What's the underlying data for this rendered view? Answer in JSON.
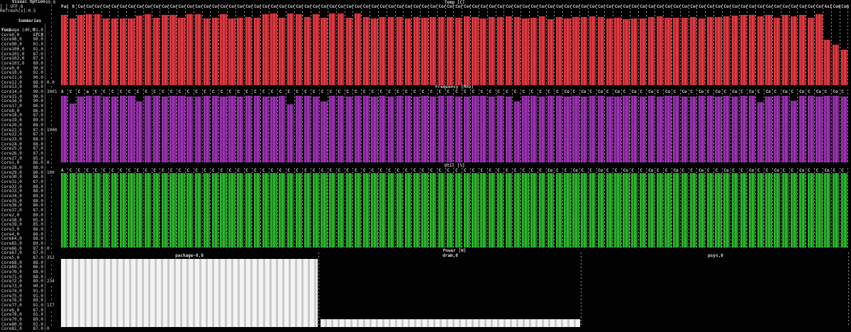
{
  "sidebar": {
    "section_title": "Visual Options",
    "utf8_option": "[ ] UTF-8",
    "refresh_label": "Refresh[s]:0.5",
    "summaries_title": "Summaries",
    "temp_header": {
      "label": "Temp",
      "unit": "[C]"
    },
    "sensors": [
      {
        "name": "Package id0,0",
        "value": "91.0",
        "axis": ""
      },
      {
        "name": "Core0,0",
        "value": "87.0",
        "axis": ""
      },
      {
        "name": "Core98,0",
        "value": "90.0",
        "axis": ""
      },
      {
        "name": "Core99,0",
        "value": "91.0",
        "axis": ""
      },
      {
        "name": "Core100,0",
        "value": "91.0",
        "axis": ""
      },
      {
        "name": "Core101,0",
        "value": "87.0",
        "axis": ""
      },
      {
        "name": "Core102,0",
        "value": "87.0",
        "axis": ""
      },
      {
        "name": "Core103,0",
        "value": "89.0",
        "axis": ""
      },
      {
        "name": "Core9,0",
        "value": "90.0",
        "axis": ""
      },
      {
        "name": "Core10,0",
        "value": "92.0",
        "axis": ""
      },
      {
        "name": "Core11,0",
        "value": "90.0",
        "axis": ""
      },
      {
        "name": "Core12,0",
        "value": "88.0",
        "axis": "0.0"
      },
      {
        "name": "Core13,0",
        "value": "90.0",
        "axis": ""
      },
      {
        "name": "Core14,0",
        "value": "90.0",
        "axis": "3001"
      },
      {
        "name": "Core15,0",
        "value": "90.0",
        "axis": ""
      },
      {
        "name": "Core16,0",
        "value": "90.0",
        "axis": ""
      },
      {
        "name": "Core17,0",
        "value": "86.0",
        "axis": ""
      },
      {
        "name": "Core8,0",
        "value": "86.0",
        "axis": ""
      },
      {
        "name": "Core18,0",
        "value": "87.0",
        "axis": ""
      },
      {
        "name": "Core19,0",
        "value": "89.0",
        "axis": ""
      },
      {
        "name": "Core20,0",
        "value": "88.0",
        "axis": ""
      },
      {
        "name": "Core21,0",
        "value": "87.0",
        "axis": "1900"
      },
      {
        "name": "Core22,0",
        "value": "87.0",
        "axis": ""
      },
      {
        "name": "Core23,0",
        "value": "88.0",
        "axis": ""
      },
      {
        "name": "Core24,0",
        "value": "88.0",
        "axis": ""
      },
      {
        "name": "Core25,0",
        "value": "87.0",
        "axis": ""
      },
      {
        "name": "Core26,0",
        "value": "87.0",
        "axis": ""
      },
      {
        "name": "Core27,0",
        "value": "85.0",
        "axis": ""
      },
      {
        "name": "Core1,0",
        "value": "86.0",
        "axis": "0"
      },
      {
        "name": "Core28,0",
        "value": "88.0",
        "axis": ""
      },
      {
        "name": "Core29,0",
        "value": "86.0",
        "axis": "100"
      },
      {
        "name": "Core30,0",
        "value": "88.0",
        "axis": ""
      },
      {
        "name": "Core31,0",
        "value": "87.0",
        "axis": ""
      },
      {
        "name": "Core32,0",
        "value": "88.0",
        "axis": ""
      },
      {
        "name": "Core33,0",
        "value": "88.0",
        "axis": ""
      },
      {
        "name": "Core34,0",
        "value": "89.0",
        "axis": ""
      },
      {
        "name": "Core35,0",
        "value": "88.0",
        "axis": ""
      },
      {
        "name": "Core36,0",
        "value": "86.0",
        "axis": ""
      },
      {
        "name": "Core37,0",
        "value": "87.0",
        "axis": ""
      },
      {
        "name": "Core2,0",
        "value": "89.0",
        "axis": ""
      },
      {
        "name": "Core38,0",
        "value": "85.0",
        "axis": ""
      },
      {
        "name": "Core39,0",
        "value": "85.0",
        "axis": ""
      },
      {
        "name": "Core3,0",
        "value": "86.0",
        "axis": ""
      },
      {
        "name": "Core4,0",
        "value": "86.0",
        "axis": ""
      },
      {
        "name": "Core64,0",
        "value": "88.0",
        "axis": ""
      },
      {
        "name": "Core65,0",
        "value": "89.0",
        "axis": ""
      },
      {
        "name": "Core66,0",
        "value": "87.0",
        "axis": "0"
      },
      {
        "name": "Core67,0",
        "value": "87.0",
        "axis": ""
      },
      {
        "name": "Core5,0",
        "value": "87.0",
        "axis": "352"
      },
      {
        "name": "Core68,0",
        "value": "88.0",
        "axis": ""
      },
      {
        "name": "Core69,0",
        "value": "86.0",
        "axis": ""
      },
      {
        "name": "Core70,0",
        "value": "88.0",
        "axis": ""
      },
      {
        "name": "Core71,0",
        "value": "88.0",
        "axis": ""
      },
      {
        "name": "Core72,0",
        "value": "89.0",
        "axis": "234"
      },
      {
        "name": "Core73,0",
        "value": "90.0",
        "axis": ""
      },
      {
        "name": "Core74,0",
        "value": "91.0",
        "axis": ""
      },
      {
        "name": "Core75,0",
        "value": "91.0",
        "axis": ""
      },
      {
        "name": "Core76,0",
        "value": "89.0",
        "axis": ""
      },
      {
        "name": "Core77,0",
        "value": "91.0",
        "axis": "117"
      },
      {
        "name": "Core6,0",
        "value": "87.0",
        "axis": ""
      },
      {
        "name": "Core78,0",
        "value": "91.0",
        "axis": ""
      },
      {
        "name": "Core79,0",
        "value": "89.0",
        "axis": ""
      },
      {
        "name": "Core80,0",
        "value": "91.0",
        "axis": ""
      },
      {
        "name": "Core81,0",
        "value": "87.0",
        "axis": "0"
      }
    ]
  },
  "chart_data": [
    {
      "type": "bar",
      "title": "Temp [C]",
      "ylabel": "Temperature C",
      "ylim": [
        0,
        99
      ],
      "axis_ticks": [
        "99.0",
        "0.0"
      ],
      "color": "#e13a42",
      "column_headers": {
        "count": 94,
        "default": "Cor",
        "overrides": {
          "0": "Pac",
          "1": " 0 ",
          "73": "Core",
          "75": "Core",
          "77": "Core",
          "79": "Core",
          "81": "Core",
          "83": "Core",
          "85": "Core",
          "87": "Core",
          "89": "Core",
          "91": "Asi",
          "92": "Comp",
          "93": "Com"
        }
      },
      "values": [
        91,
        86,
        91,
        92,
        92,
        86,
        86,
        86,
        86,
        90,
        92,
        87,
        91,
        91,
        87,
        92,
        92,
        86,
        87,
        92,
        86,
        87,
        88,
        87,
        92,
        93,
        87,
        93,
        92,
        88,
        92,
        87,
        93,
        93,
        87,
        93,
        88,
        86,
        88,
        88,
        88,
        86,
        88,
        87,
        88,
        88,
        88,
        87,
        89,
        88,
        86,
        88,
        88,
        89,
        88,
        86,
        87,
        89,
        85,
        88,
        86,
        88,
        88,
        89,
        88,
        86,
        87,
        85,
        86,
        86,
        88,
        89,
        87,
        87,
        87,
        88,
        86,
        88,
        88,
        89,
        90,
        91,
        91,
        89,
        91,
        87,
        91,
        89,
        91,
        87,
        92,
        59,
        52,
        46
      ]
    },
    {
      "type": "bar",
      "title": "Frequency [MHz]",
      "ylabel": "Frequency MHz",
      "ylim": [
        0,
        3001
      ],
      "axis_ticks": [
        "3001",
        "1900",
        "0"
      ],
      "color": "#9d32b2",
      "column_headers": {
        "count": 94,
        "default": "C",
        "overrides": {
          "0": "A",
          "3": "a",
          "60": "Co",
          "62": "Co",
          "64": "Co",
          "66": "Co",
          "68": "Co",
          "70": "Co",
          "72": "Co",
          "74": "Co",
          "76": "Co",
          "78": "Co",
          "80": "Co",
          "82": "Co",
          "84": "Co",
          "86": "Co",
          "88": "Co",
          "90": "Co",
          "92": "Co"
        }
      },
      "values": [
        2930,
        2600,
        2920,
        2930,
        2925,
        2920,
        2915,
        2925,
        2930,
        2680,
        2925,
        2930,
        2920,
        2925,
        2930,
        2920,
        2915,
        2930,
        2925,
        2920,
        2930,
        2915,
        2925,
        2930,
        2920,
        2915,
        2925,
        2560,
        2925,
        2930,
        2920,
        2700,
        2930,
        2925,
        2915,
        2930,
        2925,
        2920,
        2930,
        2915,
        2930,
        2925,
        2920,
        2930,
        2915,
        2925,
        2930,
        2920,
        2915,
        2930,
        2925,
        2920,
        2930,
        2915,
        2680,
        2930,
        2925,
        2915,
        2930,
        2925,
        2920,
        2930,
        2915,
        2925,
        2930,
        2920,
        2915,
        2930,
        2925,
        2920,
        2930,
        2915,
        2925,
        2930,
        2920,
        2915,
        2930,
        2925,
        2920,
        2930,
        2915,
        2925,
        2930,
        2650,
        2915,
        2925,
        2930,
        2720,
        2925,
        2930,
        2915,
        2925,
        2930,
        2920
      ]
    },
    {
      "type": "bar",
      "title": "Util [%]",
      "ylabel": "Utilization %",
      "ylim": [
        0,
        100
      ],
      "axis_ticks": [
        "100",
        "0"
      ],
      "color": "#2cb42c",
      "column_headers": {
        "count": 94,
        "default": "C",
        "overrides": {
          "0": "A",
          "58": "Co",
          "61": "Co",
          "64": "Co",
          "67": "Co",
          "70": "Co",
          "73": "Co",
          "76": "Co",
          "79": "Co",
          "82": "Co",
          "85": "Co",
          "88": "Co",
          "91": "Co"
        }
      },
      "values": [
        100,
        100,
        100,
        100,
        100,
        100,
        100,
        100,
        100,
        100,
        100,
        100,
        100,
        100,
        100,
        100,
        100,
        100,
        100,
        100,
        100,
        100,
        100,
        100,
        100,
        100,
        100,
        100,
        100,
        100,
        100,
        100,
        100,
        100,
        100,
        100,
        100,
        100,
        100,
        100,
        100,
        100,
        100,
        100,
        100,
        100,
        100,
        100,
        100,
        100,
        100,
        100,
        100,
        100,
        100,
        100,
        100,
        100,
        100,
        100,
        100,
        100,
        100,
        100,
        100,
        100,
        100,
        100,
        100,
        100,
        100,
        100,
        100,
        100,
        100,
        100,
        100,
        100,
        100,
        100,
        100,
        100,
        100,
        100,
        100,
        100,
        100,
        100,
        100,
        100,
        100,
        100,
        100,
        100
      ]
    },
    {
      "type": "bar",
      "title": "Power [W]",
      "ylabel": "Power W",
      "ylim": [
        0,
        352
      ],
      "axis_ticks": [
        "352",
        "234",
        "117",
        "0"
      ],
      "color": "#f3f3f3",
      "panels": [
        {
          "label": "package-0,0",
          "value": 350
        },
        {
          "label": "dram,0",
          "value": 40
        },
        {
          "label": "psys,0",
          "value": 0
        }
      ]
    }
  ]
}
